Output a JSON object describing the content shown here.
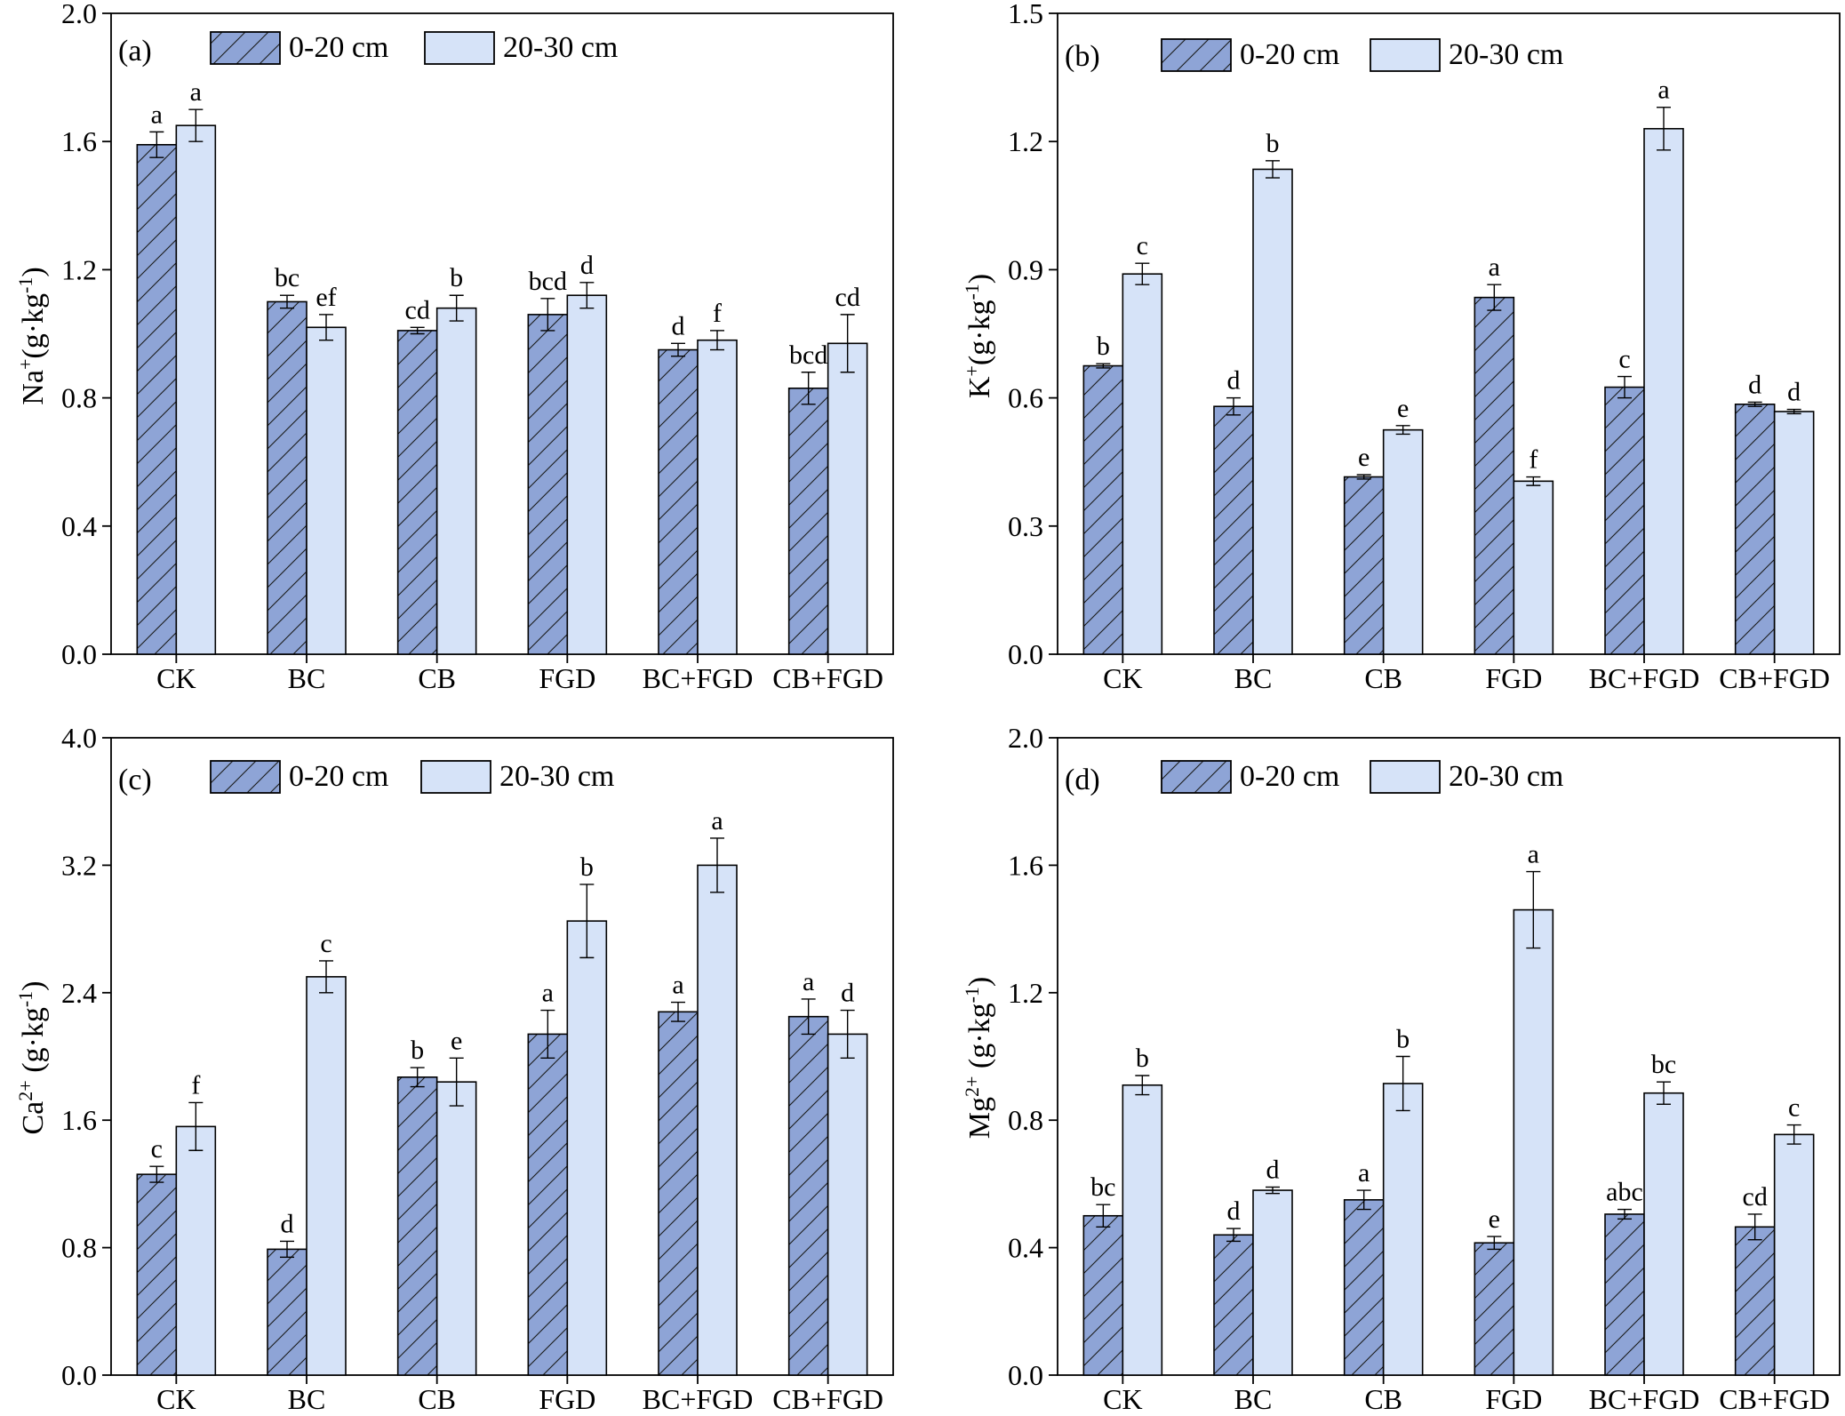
{
  "colors": {
    "series1_fill": "#8EA4D6",
    "series2_fill": "#D6E3F8",
    "stroke": "#000000"
  },
  "chart_data": [
    {
      "type": "bar",
      "panel": "(a)",
      "ylabel": "Na+(g·kg-1)",
      "ylabel_parts": {
        "base": "Na",
        "sup1": "+",
        "mid": "(g·kg",
        "sup2": "-1",
        "end": ")"
      },
      "categories": [
        "CK",
        "BC",
        "CB",
        "FGD",
        "BC+FGD",
        "CB+FGD"
      ],
      "ylim": [
        0,
        2.0
      ],
      "yticks": [
        "0.0",
        "0.4",
        "0.8",
        "1.2",
        "1.6",
        "2.0"
      ],
      "series": [
        {
          "name": "0-20 cm",
          "values": [
            1.59,
            1.1,
            1.01,
            1.06,
            0.95,
            0.83
          ],
          "errors": [
            0.04,
            0.02,
            0.01,
            0.05,
            0.02,
            0.05
          ],
          "letters": [
            "a",
            "bc",
            "cd",
            "bcd",
            "d",
            "bcd"
          ]
        },
        {
          "name": "20-30 cm",
          "values": [
            1.65,
            1.02,
            1.08,
            1.12,
            0.98,
            0.97
          ],
          "errors": [
            0.05,
            0.04,
            0.04,
            0.04,
            0.03,
            0.09
          ],
          "letters": [
            "a",
            "ef",
            "b",
            "d",
            "f",
            "cd"
          ]
        }
      ]
    },
    {
      "type": "bar",
      "panel": "(b)",
      "ylabel": "K+(g·kg-1)",
      "ylabel_parts": {
        "base": "K",
        "sup1": "+",
        "mid": "(g·kg",
        "sup2": "-1",
        "end": ")"
      },
      "categories": [
        "CK",
        "BC",
        "CB",
        "FGD",
        "BC+FGD",
        "CB+FGD"
      ],
      "ylim": [
        0,
        1.5
      ],
      "yticks": [
        "0.0",
        "0.3",
        "0.6",
        "0.9",
        "1.2",
        "1.5"
      ],
      "series": [
        {
          "name": "0-20 cm",
          "values": [
            0.675,
            0.58,
            0.415,
            0.835,
            0.625,
            0.585
          ],
          "errors": [
            0.005,
            0.02,
            0.005,
            0.03,
            0.025,
            0.005
          ],
          "letters": [
            "b",
            "d",
            "e",
            "a",
            "c",
            "d"
          ]
        },
        {
          "name": "20-30 cm",
          "values": [
            0.89,
            1.135,
            0.525,
            0.405,
            1.23,
            0.568
          ],
          "errors": [
            0.025,
            0.02,
            0.01,
            0.01,
            0.05,
            0.005
          ],
          "letters": [
            "c",
            "b",
            "e",
            "f",
            "a",
            "d"
          ]
        }
      ]
    },
    {
      "type": "bar",
      "panel": "(c)",
      "ylabel": "Ca2+ (g·kg-1)",
      "ylabel_parts": {
        "base": "Ca",
        "sup1": "2+",
        "mid": " (g·kg",
        "sup2": "-1",
        "end": ")"
      },
      "categories": [
        "CK",
        "BC",
        "CB",
        "FGD",
        "BC+FGD",
        "CB+FGD"
      ],
      "ylim": [
        0,
        4.0
      ],
      "yticks": [
        "0.0",
        "0.8",
        "1.6",
        "2.4",
        "3.2",
        "4.0"
      ],
      "series": [
        {
          "name": "0-20 cm",
          "values": [
            1.26,
            0.79,
            1.87,
            2.14,
            2.28,
            2.25
          ],
          "errors": [
            0.05,
            0.05,
            0.06,
            0.15,
            0.06,
            0.11
          ],
          "letters": [
            "c",
            "d",
            "b",
            "a",
            "a",
            "a"
          ]
        },
        {
          "name": "20-30 cm",
          "values": [
            1.56,
            2.5,
            1.84,
            2.85,
            3.2,
            2.14
          ],
          "errors": [
            0.15,
            0.1,
            0.15,
            0.23,
            0.17,
            0.15
          ],
          "letters": [
            "f",
            "c",
            "e",
            "b",
            "a",
            "d"
          ]
        }
      ]
    },
    {
      "type": "bar",
      "panel": "(d)",
      "ylabel": "Mg2+ (g·kg-1)",
      "ylabel_parts": {
        "base": "Mg",
        "sup1": "2+",
        "mid": " (g·kg",
        "sup2": "-1",
        "end": ")"
      },
      "categories": [
        "CK",
        "BC",
        "CB",
        "FGD",
        "BC+FGD",
        "CB+FGD"
      ],
      "ylim": [
        0,
        2.0
      ],
      "yticks": [
        "0.0",
        "0.4",
        "0.8",
        "1.2",
        "1.6",
        "2.0"
      ],
      "series": [
        {
          "name": "0-20 cm",
          "values": [
            0.5,
            0.44,
            0.55,
            0.415,
            0.505,
            0.465
          ],
          "errors": [
            0.035,
            0.02,
            0.03,
            0.02,
            0.015,
            0.04
          ],
          "letters": [
            "bc",
            "d",
            "a",
            "e",
            "abc",
            "cd"
          ]
        },
        {
          "name": "20-30 cm",
          "values": [
            0.91,
            0.58,
            0.915,
            1.46,
            0.885,
            0.755
          ],
          "errors": [
            0.03,
            0.01,
            0.085,
            0.12,
            0.035,
            0.03
          ],
          "letters": [
            "b",
            "d",
            "b",
            "a",
            "bc",
            "c"
          ]
        }
      ]
    }
  ]
}
